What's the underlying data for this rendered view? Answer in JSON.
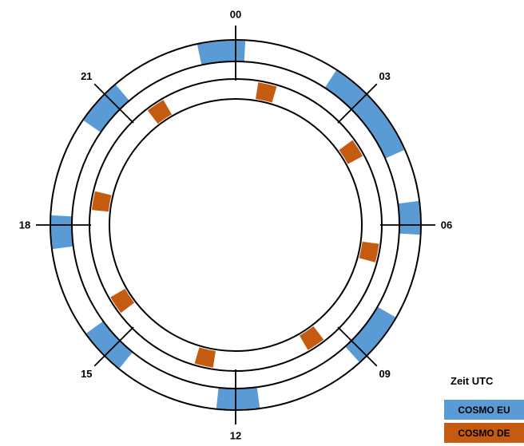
{
  "colors": {
    "eu": "#5b9bd5",
    "de": "#c55a11",
    "ring": "#000000",
    "background": "#ffffff"
  },
  "hours": [
    {
      "label": "00",
      "hour": 0
    },
    {
      "label": "03",
      "hour": 3
    },
    {
      "label": "06",
      "hour": 6
    },
    {
      "label": "09",
      "hour": 9
    },
    {
      "label": "12",
      "hour": 12
    },
    {
      "label": "15",
      "hour": 15
    },
    {
      "label": "18",
      "hour": 18
    },
    {
      "label": "21",
      "hour": 21
    }
  ],
  "legend": {
    "title": "Zeit UTC",
    "items": [
      {
        "label": "COSMO EU",
        "series": "eu"
      },
      {
        "label": "COSMO DE",
        "series": "de"
      }
    ]
  },
  "runs": {
    "eu": [
      {
        "start_hour": 23.2,
        "end_hour": 0.2
      },
      {
        "start_hour": 2.2,
        "end_hour": 4.4
      },
      {
        "start_hour": 5.5,
        "end_hour": 6.2
      },
      {
        "start_hour": 8.0,
        "end_hour": 9.2
      },
      {
        "start_hour": 11.5,
        "end_hour": 12.4
      },
      {
        "start_hour": 14.6,
        "end_hour": 15.6
      },
      {
        "start_hour": 17.5,
        "end_hour": 18.2
      },
      {
        "start_hour": 20.3,
        "end_hour": 21.3
      }
    ],
    "de": [
      {
        "start_hour": 0.6,
        "end_hour": 1.1
      },
      {
        "start_hour": 3.6,
        "end_hour": 4.1
      },
      {
        "start_hour": 6.5,
        "end_hour": 7.0
      },
      {
        "start_hour": 9.5,
        "end_hour": 10.0
      },
      {
        "start_hour": 12.6,
        "end_hour": 13.1
      },
      {
        "start_hour": 15.5,
        "end_hour": 16.0
      },
      {
        "start_hour": 18.4,
        "end_hour": 18.9
      },
      {
        "start_hour": 21.5,
        "end_hour": 22.0
      }
    ]
  }
}
